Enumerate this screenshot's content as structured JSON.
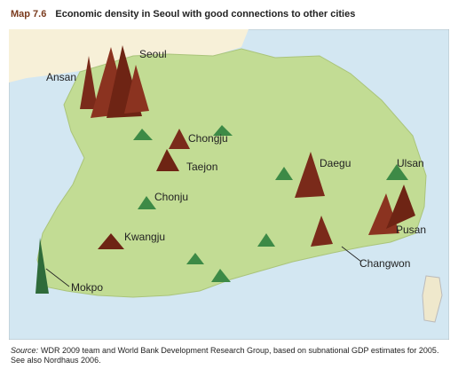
{
  "header": {
    "label": "Map 7.6",
    "title": "Economic density in Seoul with good connections to other cities"
  },
  "map": {
    "labels": [
      "Seoul",
      "Ansan",
      "Chongju",
      "Taejon",
      "Daegu",
      "Ulsan",
      "Chonju",
      "Kwangju",
      "Pusan",
      "Changwon",
      "Mokpo"
    ]
  },
  "source": {
    "prefix": "Source:",
    "text": "WDR 2009 team and World Bank Development Research Group, based on subnational GDP estimates for 2005. See also Nordhaus 2006."
  }
}
